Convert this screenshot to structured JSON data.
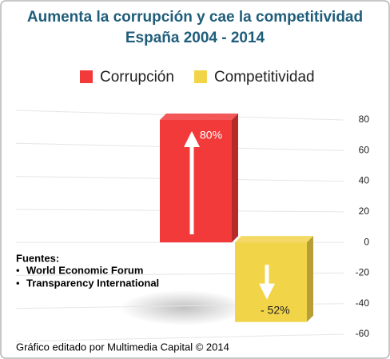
{
  "chart_data": {
    "type": "bar",
    "title": "Aumenta la corrupción y cae la competitividad",
    "subtitle": "España 2004 - 2014",
    "categories": [
      null
    ],
    "series": [
      {
        "name": "Corrupción",
        "color": "#f23a3a",
        "values": [
          80
        ],
        "value_labels": [
          "80%"
        ]
      },
      {
        "name": "Competitividad",
        "color": "#f2d449",
        "values": [
          -52
        ],
        "value_labels": [
          "- 52%"
        ]
      }
    ],
    "ylim": [
      -60,
      80
    ],
    "yticks": [
      80,
      60,
      40,
      20,
      0,
      -20,
      -40,
      -60
    ],
    "grid": true,
    "legend": "top",
    "sources_title": "Fuentes:",
    "sources": [
      "World Economic Forum",
      "Transparency International"
    ],
    "credit": "Gráfico editado por Multimedia Capital © 2014"
  }
}
